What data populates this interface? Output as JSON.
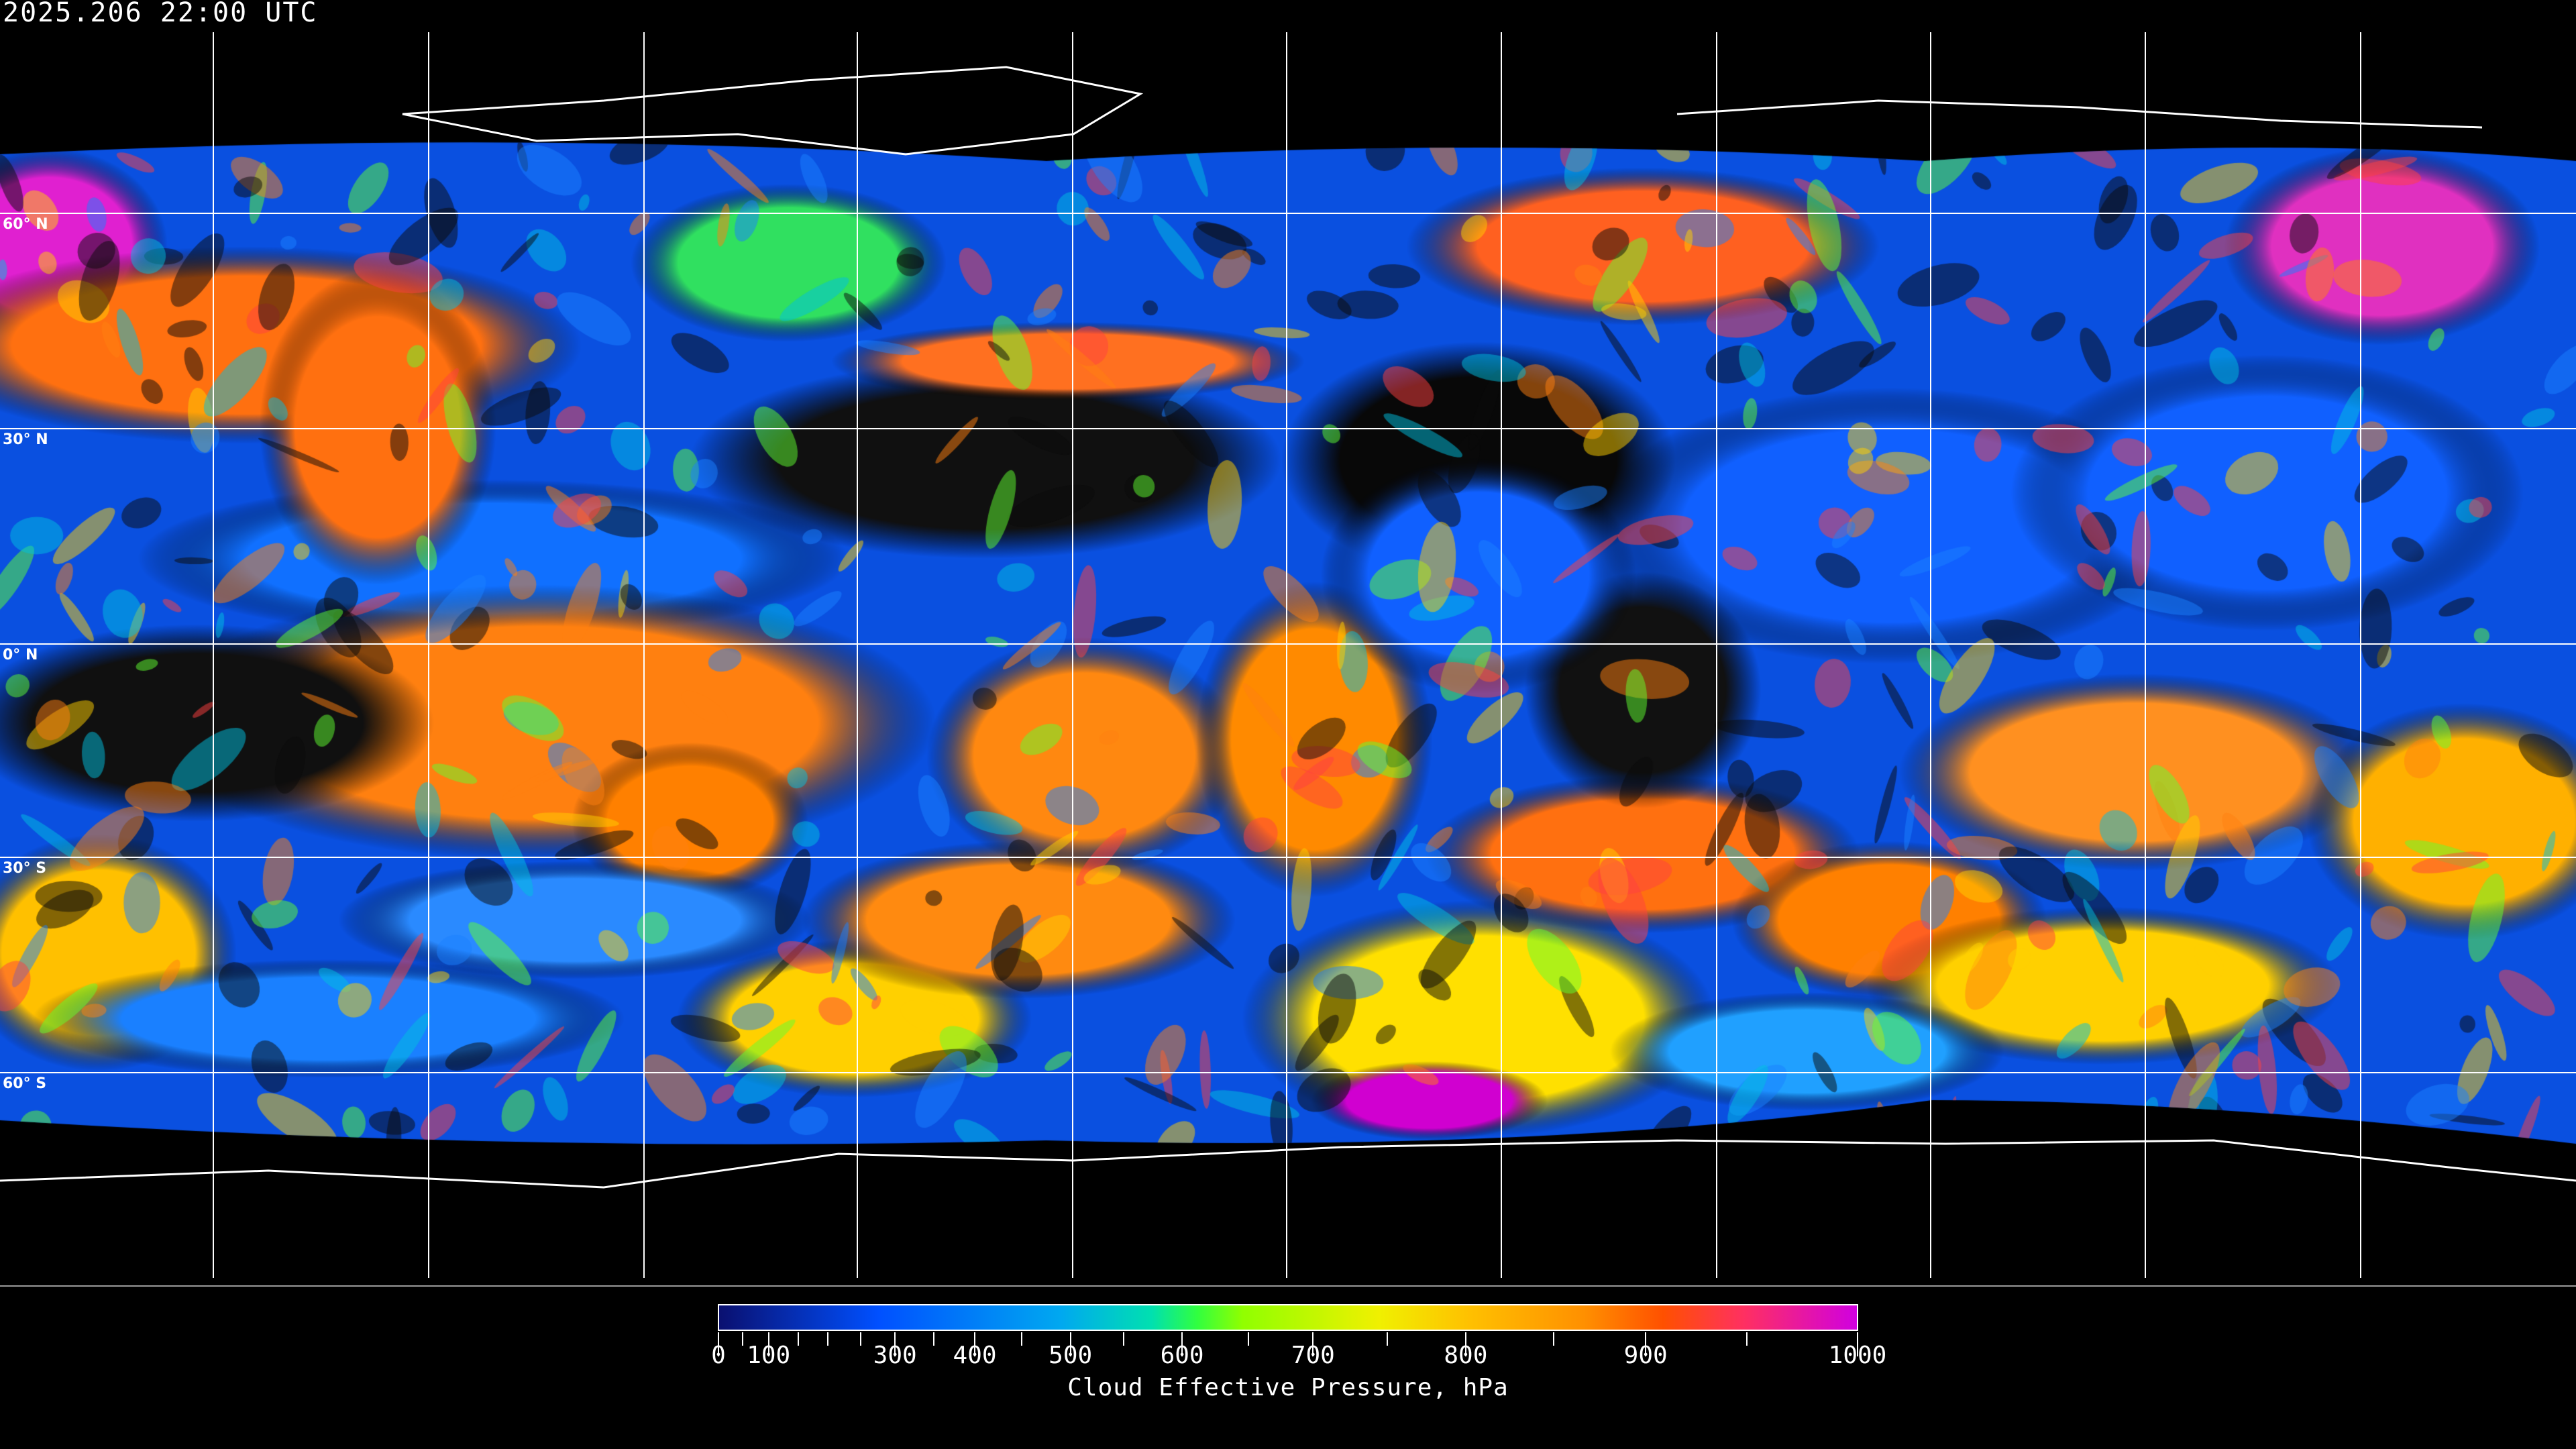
{
  "header": {
    "timestamp": "2025.206 22:00 UTC"
  },
  "map": {
    "product": "Cloud Effective Pressure",
    "latitude_labels": [
      "60° N",
      "30° N",
      "0° N",
      "30° S",
      "60° S"
    ],
    "background_color": "#000000",
    "gridline_color": "#ffffff",
    "coastline_color": "#ffffff"
  },
  "colorbar": {
    "label": "Cloud Effective Pressure, hPa",
    "range": [
      0,
      1000
    ],
    "tick_labels": [
      "0",
      "100",
      "300",
      "400",
      "500",
      "600",
      "700",
      "800",
      "900",
      "1000"
    ],
    "colors": [
      "#0a1070",
      "#0050ff",
      "#00a8f0",
      "#00e0b0",
      "#30ff40",
      "#90ff00",
      "#f0f000",
      "#ffc000",
      "#ff9000",
      "#ff5000",
      "#ff3060",
      "#d000e0"
    ]
  }
}
